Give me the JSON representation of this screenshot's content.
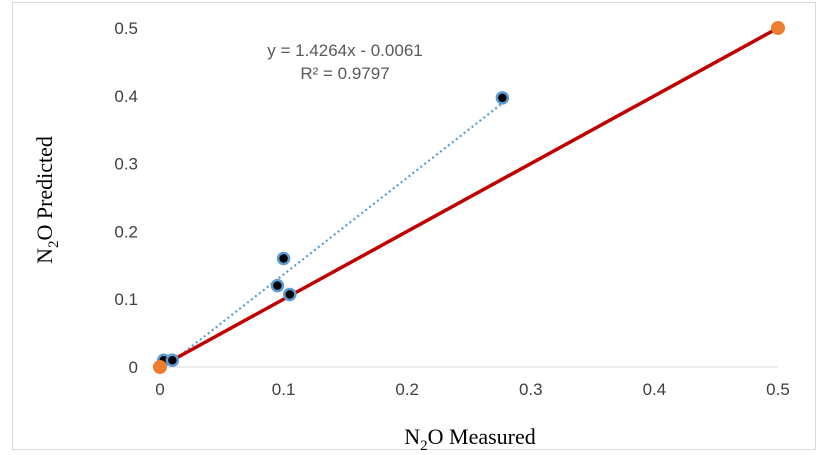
{
  "chart_data": {
    "type": "scatter",
    "title": "",
    "xlabel": {
      "base": "N",
      "sub": "2",
      "rest": "O Measured"
    },
    "ylabel": {
      "base": "N",
      "sub": "2",
      "rest": "O Predicted"
    },
    "xlim": [
      0,
      0.5
    ],
    "ylim": [
      0,
      0.5
    ],
    "xticks": [
      "0",
      "0.1",
      "0.2",
      "0.3",
      "0.4",
      "0.5"
    ],
    "yticks": [
      "0",
      "0.1",
      "0.2",
      "0.3",
      "0.4",
      "0.5"
    ],
    "grid": false,
    "legend": "none",
    "series": [
      {
        "kind": "points",
        "color": "#000000",
        "edge_color": "#5b9bd5",
        "points": [
          {
            "x": 0.003,
            "y": 0.01
          },
          {
            "x": 0.01,
            "y": 0.01
          },
          {
            "x": 0.095,
            "y": 0.12
          },
          {
            "x": 0.1,
            "y": 0.16
          },
          {
            "x": 0.105,
            "y": 0.107
          },
          {
            "x": 0.277,
            "y": 0.397
          }
        ]
      },
      {
        "kind": "trendline",
        "style": "dotted",
        "color": "#5b9bd5",
        "slope": 1.4264,
        "intercept": -0.0061,
        "x_range": [
          0.01,
          0.277
        ]
      },
      {
        "kind": "reference-line",
        "color": "#c00000",
        "points": [
          {
            "x": 0,
            "y": 0
          },
          {
            "x": 0.5,
            "y": 0.5
          }
        ],
        "endpoint_color": "#ed7d31"
      }
    ],
    "annotations": {
      "equation": "y = 1.4264x - 0.0061",
      "r_squared": "R² = 0.9797"
    }
  }
}
